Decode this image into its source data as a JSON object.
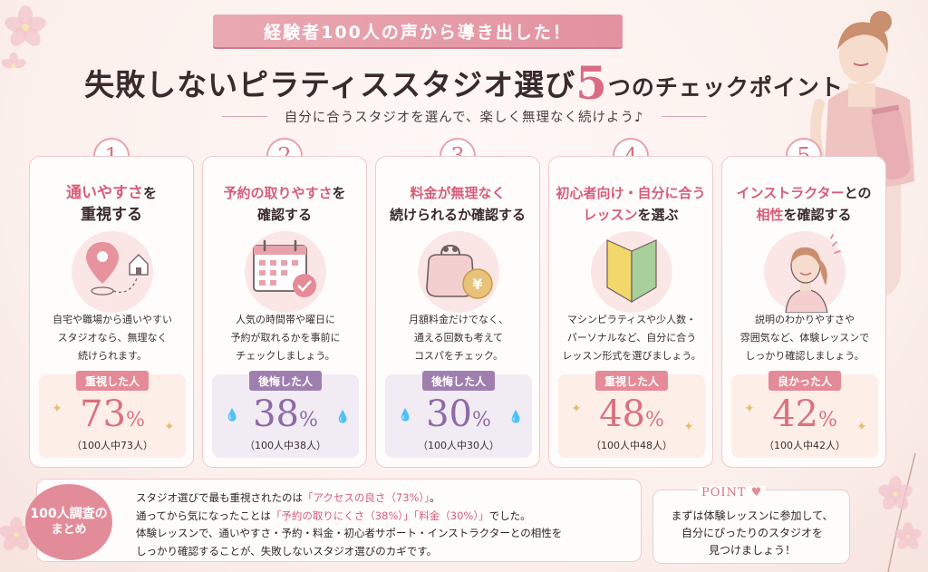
{
  "banner": "経験者100人の声から導き出した！",
  "title": {
    "part1": "失敗しないピラティススタジオ選び",
    "number": "5",
    "part2": "つのチェックポイント"
  },
  "subtitle": "自分に合うスタジオを選んで、楽しく無理なく続けよう♪",
  "cards": [
    {
      "num": "1",
      "title_hl": "通いやすさ",
      "title_rest": "を",
      "title_line2": "重視する",
      "icon": "map-pin-home-icon",
      "text": [
        "自宅や職場から通いやすい",
        "スタジオなら、無理なく",
        "続けられます。"
      ],
      "label": "重視した人",
      "value": "73",
      "pct": "%",
      "sub": "（100人中73人）"
    },
    {
      "num": "2",
      "title_hl": "予約の取りやすさ",
      "title_rest": "を",
      "title_line2": "確認する",
      "icon": "calendar-check-icon",
      "text": [
        "人気の時間帯や曜日に",
        "予約が取れるかを事前に",
        "チェックしましょう。"
      ],
      "label": "後悔した人",
      "value": "38",
      "pct": "%",
      "sub": "（100人中38人）"
    },
    {
      "num": "3",
      "title_hl": "料金が無理なく",
      "title_rest": "",
      "title_line2": "続けられるか確認する",
      "icon": "yen-purse-icon",
      "text": [
        "月額料金だけでなく、",
        "通える回数も考えて",
        "コスパをチェック。"
      ],
      "label": "後悔した人",
      "value": "30",
      "pct": "%",
      "sub": "（100人中30人）"
    },
    {
      "num": "4",
      "title_hl": "初心者向け・自分に合う",
      "title_rest": "",
      "title_line2_hl": "レッスン",
      "title_line2": "を選ぶ",
      "icon": "beginner-mark-icon",
      "text": [
        "マシンピラティスや少人数・",
        "パーソナルなど、自分に合う",
        "レッスン形式を選びましょう。"
      ],
      "label": "重視した人",
      "value": "48",
      "pct": "%",
      "sub": "（100人中48人）"
    },
    {
      "num": "5",
      "title_hl": "インストラクター",
      "title_rest": "との",
      "title_line2_hl": "相性",
      "title_line2": "を確認する",
      "icon": "instructor-icon",
      "text": [
        "説明のわかりやすさや",
        "雰囲気など、体験レッスンで",
        "しっかり確認しましょう。"
      ],
      "label": "良かった人",
      "value": "42",
      "pct": "%",
      "sub": "（100人中42人）"
    }
  ],
  "summary": {
    "badge_line1": "100人調査の",
    "badge_line2": "まとめ",
    "line1_a": "スタジオ選びで最も重視されたのは",
    "line1_hl": "「アクセスの良さ（73%）」",
    "line1_b": "。",
    "line2_a": "通ってから気になったことは",
    "line2_hl1": "「予約の取りにくさ（38%）」",
    "line2_hl2": "「料金（30%）」",
    "line2_b": "でした。",
    "line3": "体験レッスンで、通いやすさ・予約・料金・初心者サポート・インストラクターとの相性を",
    "line4": "しっかり確認することが、失敗しないスタジオ選びのカギです。"
  },
  "point": {
    "label": "POINT",
    "text": [
      "まずは体験レッスンに参加して、",
      "自分にぴったりのスタジオを",
      "見つけましょう！"
    ]
  },
  "colors": {
    "accent_pink": "#d9727f",
    "accent_purple": "#8d6aa5",
    "banner": "#e391a0"
  }
}
